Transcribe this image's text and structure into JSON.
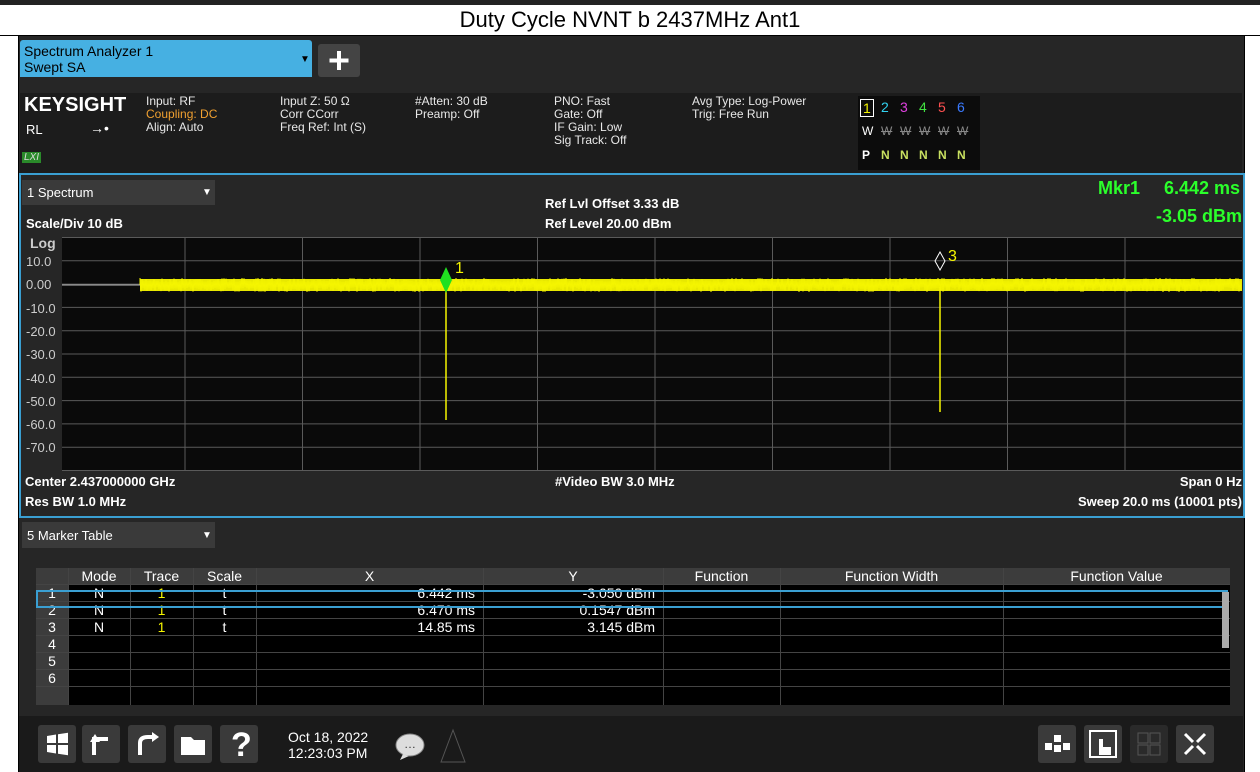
{
  "title": "Duty Cycle NVNT b 2437MHz Ant1",
  "tab": {
    "line1": "Spectrum Analyzer 1",
    "line2": "Swept SA"
  },
  "status": {
    "brand": "KEYSIGHT",
    "rl": "RL",
    "lxi": "LXI",
    "col1": [
      "Input: RF",
      "Coupling: DC",
      "Align: Auto"
    ],
    "col2": [
      "Input Z: 50 Ω",
      "Corr CCorr",
      "Freq Ref: Int (S)"
    ],
    "col3": [
      "#Atten: 30 dB",
      "Preamp: Off"
    ],
    "col4": [
      "PNO: Fast",
      "Gate: Off",
      "IF Gain: Low",
      "Sig Track: Off"
    ],
    "col5": [
      "Avg Type: Log-Power",
      "Trig: Free Run"
    ],
    "trace_numbers": [
      "1",
      "2",
      "3",
      "4",
      "5",
      "6"
    ],
    "trace_types": [
      "W",
      "W",
      "W",
      "W",
      "W",
      "W"
    ],
    "detectors": [
      "P",
      "N",
      "N",
      "N",
      "N",
      "N"
    ]
  },
  "spectrum": {
    "window": "1 Spectrum",
    "scale": "Scale/Div 10 dB",
    "mode": "Log",
    "ref_offset": "Ref Lvl Offset 3.33 dB",
    "ref_level": "Ref Level 20.00 dBm",
    "marker": "Mkr1",
    "marker_x": "6.442 ms",
    "marker_y": "-3.05 dBm",
    "y_labels": [
      "10.0",
      "0.00",
      "-10.0",
      "-20.0",
      "-30.0",
      "-40.0",
      "-50.0",
      "-60.0",
      "-70.0"
    ],
    "marker_labels": [
      "1",
      "3"
    ],
    "center": "Center 2.437000000 GHz",
    "res_bw": "Res BW 1.0 MHz",
    "video_bw": "#Video BW 3.0 MHz",
    "span": "Span 0 Hz",
    "sweep": "Sweep 20.0 ms (10001 pts)"
  },
  "marker_table": {
    "window": "5 Marker Table",
    "columns": [
      "Mode",
      "Trace",
      "Scale",
      "X",
      "Y",
      "Function",
      "Function Width",
      "Function Value"
    ],
    "rows": [
      {
        "n": "1",
        "mode": "N",
        "trace": "1",
        "scale": "t",
        "x": "6.442 ms",
        "y": "-3.050 dBm"
      },
      {
        "n": "2",
        "mode": "N",
        "trace": "1",
        "scale": "t",
        "x": "6.470 ms",
        "y": "0.1547 dBm"
      },
      {
        "n": "3",
        "mode": "N",
        "trace": "1",
        "scale": "t",
        "x": "14.85 ms",
        "y": "3.145 dBm"
      },
      {
        "n": "4"
      },
      {
        "n": "5"
      },
      {
        "n": "6"
      }
    ]
  },
  "taskbar": {
    "date": "Oct 18, 2022",
    "time": "12:23:03 PM"
  }
}
